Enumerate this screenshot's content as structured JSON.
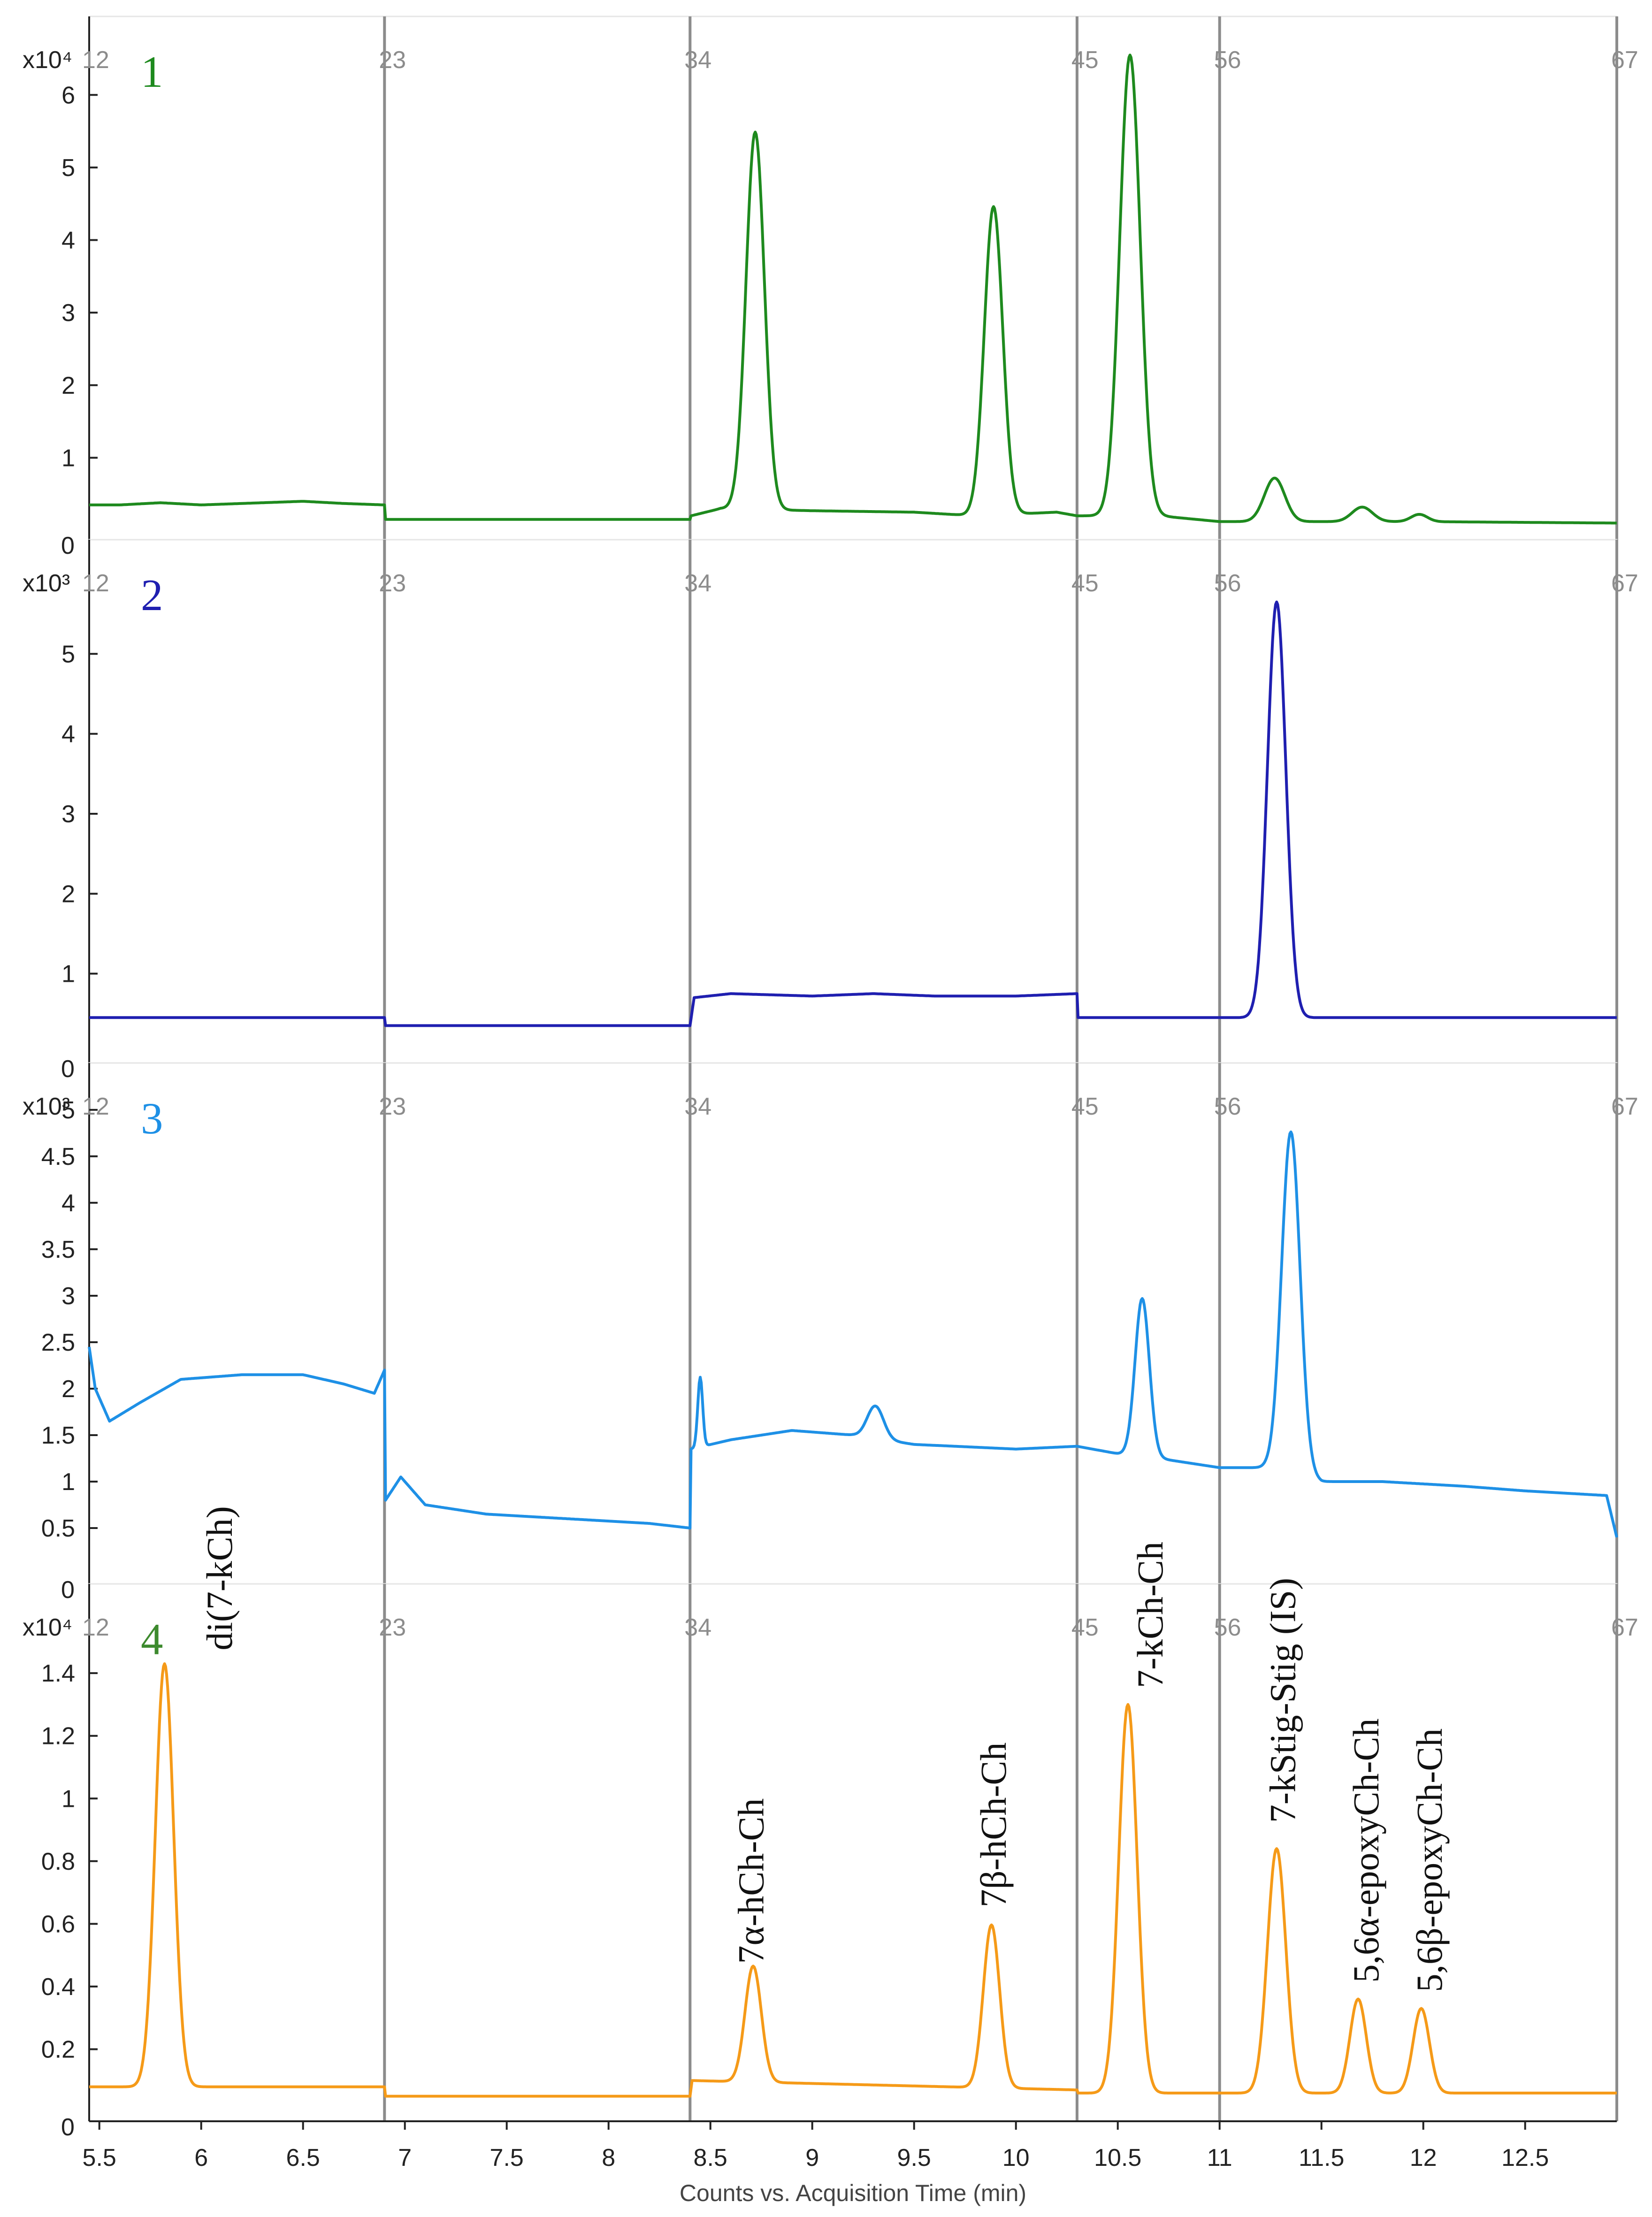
{
  "figure": {
    "type": "chromatogram-stack",
    "x_label": "Counts vs. Acquisition Time (min)",
    "x_ticks": [
      "5.5",
      "6",
      "6.5",
      "7",
      "7.5",
      "8",
      "8.5",
      "9",
      "9.5",
      "10",
      "10.5",
      "11",
      "11.5",
      "12",
      "12.5"
    ],
    "segment_labels": [
      {
        "t": 5.45,
        "text": "12"
      },
      {
        "t": 6.9,
        "text": "23"
      },
      {
        "t": 8.4,
        "text": "34"
      },
      {
        "t": 10.3,
        "text": "45"
      },
      {
        "t": 11.0,
        "text": "56"
      },
      {
        "t": 12.95,
        "text": "67"
      }
    ],
    "segment_boundaries": [
      6.9,
      8.4,
      10.3,
      11.0,
      12.95
    ]
  },
  "chart_data": [
    {
      "type": "line",
      "panel_number": "1",
      "number_color": "#1e8a1e",
      "color": "#1e8a1e",
      "exponent_label": "x10⁴",
      "y_ticks": [
        "1",
        "2",
        "3",
        "4",
        "5",
        "6"
      ],
      "y_zero": "0",
      "ylim": [
        0,
        6.5
      ],
      "xlim": [
        5.45,
        12.95
      ],
      "baseline": [
        [
          5.45,
          0.35
        ],
        [
          5.6,
          0.35
        ],
        [
          5.8,
          0.38
        ],
        [
          6.0,
          0.35
        ],
        [
          6.2,
          0.37
        ],
        [
          6.5,
          0.4
        ],
        [
          6.7,
          0.37
        ],
        [
          6.9,
          0.35
        ],
        [
          6.905,
          0.15
        ],
        [
          8.4,
          0.15
        ],
        [
          8.405,
          0.2
        ],
        [
          8.55,
          0.3
        ],
        [
          9.0,
          0.27
        ],
        [
          9.5,
          0.25
        ],
        [
          9.8,
          0.2
        ],
        [
          10.2,
          0.25
        ],
        [
          10.3,
          0.2
        ],
        [
          10.5,
          0.2
        ],
        [
          10.7,
          0.2
        ],
        [
          11.0,
          0.12
        ],
        [
          11.3,
          0.12
        ],
        [
          11.6,
          0.12
        ],
        [
          12.0,
          0.12
        ],
        [
          12.95,
          0.1
        ]
      ],
      "peaks": [
        {
          "center": 8.72,
          "height": 5.2,
          "sigma": 0.045
        },
        {
          "center": 9.89,
          "height": 4.25,
          "sigma": 0.045
        },
        {
          "center": 10.56,
          "height": 6.35,
          "sigma": 0.05
        },
        {
          "center": 11.27,
          "height": 0.6,
          "sigma": 0.05
        },
        {
          "center": 11.7,
          "height": 0.2,
          "sigma": 0.05
        },
        {
          "center": 11.98,
          "height": 0.1,
          "sigma": 0.04
        }
      ],
      "annotations": []
    },
    {
      "type": "line",
      "panel_number": "2",
      "number_color": "#1f1fb0",
      "color": "#1f1fb0",
      "exponent_label": "x10³",
      "y_ticks": [
        "1",
        "2",
        "3",
        "4",
        "5"
      ],
      "y_zero": "0",
      "ylim": [
        0,
        5.9
      ],
      "xlim": [
        5.45,
        12.95
      ],
      "baseline": [
        [
          5.45,
          0.45
        ],
        [
          6.9,
          0.45
        ],
        [
          6.905,
          0.35
        ],
        [
          8.4,
          0.35
        ],
        [
          8.42,
          0.7
        ],
        [
          8.6,
          0.75
        ],
        [
          9.0,
          0.72
        ],
        [
          9.3,
          0.75
        ],
        [
          9.6,
          0.72
        ],
        [
          10.0,
          0.72
        ],
        [
          10.3,
          0.75
        ],
        [
          10.305,
          0.45
        ],
        [
          11.0,
          0.45
        ],
        [
          12.95,
          0.45
        ]
      ],
      "peaks": [
        {
          "center": 11.28,
          "height": 5.2,
          "sigma": 0.045
        }
      ],
      "annotations": []
    },
    {
      "type": "line",
      "panel_number": "3",
      "number_color": "#1e90e6",
      "color": "#1e90e6",
      "exponent_label": "x10³",
      "y_ticks": [
        "0.5",
        "1",
        "1.5",
        "2",
        "2.5",
        "3",
        "3.5",
        "4",
        "4.5",
        "5"
      ],
      "y_zero": "0",
      "ylim": [
        0,
        5.05
      ],
      "xlim": [
        5.45,
        12.95
      ],
      "baseline": [
        [
          5.45,
          2.45
        ],
        [
          5.48,
          2.0
        ],
        [
          5.55,
          1.65
        ],
        [
          5.7,
          1.85
        ],
        [
          5.9,
          2.1
        ],
        [
          6.2,
          2.15
        ],
        [
          6.5,
          2.15
        ],
        [
          6.7,
          2.05
        ],
        [
          6.85,
          1.95
        ],
        [
          6.9,
          2.2
        ],
        [
          6.905,
          0.8
        ],
        [
          6.98,
          1.05
        ],
        [
          7.1,
          0.75
        ],
        [
          7.4,
          0.65
        ],
        [
          7.8,
          0.6
        ],
        [
          8.2,
          0.55
        ],
        [
          8.4,
          0.5
        ],
        [
          8.405,
          1.35
        ],
        [
          8.6,
          1.45
        ],
        [
          8.9,
          1.55
        ],
        [
          9.2,
          1.5
        ],
        [
          9.5,
          1.4
        ],
        [
          10.0,
          1.35
        ],
        [
          10.3,
          1.38
        ],
        [
          10.5,
          1.3
        ],
        [
          10.7,
          1.25
        ],
        [
          11.0,
          1.15
        ],
        [
          11.3,
          1.15
        ],
        [
          11.5,
          1.0
        ],
        [
          11.8,
          1.0
        ],
        [
          12.2,
          0.95
        ],
        [
          12.5,
          0.9
        ],
        [
          12.9,
          0.85
        ],
        [
          12.95,
          0.4
        ]
      ],
      "peaks": [
        {
          "center": 8.45,
          "height": 0.75,
          "sigma": 0.012
        },
        {
          "center": 9.31,
          "height": 0.35,
          "sigma": 0.04
        },
        {
          "center": 10.62,
          "height": 1.7,
          "sigma": 0.035
        },
        {
          "center": 11.35,
          "height": 3.65,
          "sigma": 0.045
        }
      ],
      "annotations": []
    },
    {
      "type": "line",
      "panel_number": "4",
      "number_color": "#3d8a2e",
      "color": "#f59a18",
      "exponent_label": "x10⁴",
      "y_ticks": [
        "0.2",
        "0.4",
        "0.6",
        "0.8",
        "1",
        "1.2",
        "1.4"
      ],
      "y_zero": "0",
      "ylim": [
        0,
        1.55
      ],
      "xlim": [
        5.45,
        12.95
      ],
      "baseline": [
        [
          5.45,
          0.08
        ],
        [
          6.9,
          0.08
        ],
        [
          6.905,
          0.05
        ],
        [
          8.4,
          0.05
        ],
        [
          8.41,
          0.1
        ],
        [
          10.3,
          0.07
        ],
        [
          10.305,
          0.06
        ],
        [
          11.0,
          0.06
        ],
        [
          12.95,
          0.06
        ]
      ],
      "peaks": [
        {
          "center": 5.82,
          "height": 1.35,
          "sigma": 0.045
        },
        {
          "center": 8.71,
          "height": 0.37,
          "sigma": 0.04
        },
        {
          "center": 9.88,
          "height": 0.52,
          "sigma": 0.04
        },
        {
          "center": 10.55,
          "height": 1.24,
          "sigma": 0.045
        },
        {
          "center": 11.28,
          "height": 0.78,
          "sigma": 0.045
        },
        {
          "center": 11.68,
          "height": 0.3,
          "sigma": 0.04
        },
        {
          "center": 11.99,
          "height": 0.27,
          "sigma": 0.04
        }
      ],
      "annotations": [
        {
          "t": 6.15,
          "y": 1.42,
          "text": "di(7-kCh)"
        },
        {
          "t": 8.76,
          "y": 0.42,
          "text": "7α-hCh-Ch"
        },
        {
          "t": 9.95,
          "y": 0.6,
          "text": "7β-hCh-Ch"
        },
        {
          "t": 10.72,
          "y": 1.3,
          "text": "7-kCh-Ch"
        },
        {
          "t": 11.37,
          "y": 0.87,
          "text": "7-kStig-Stig (IS)"
        },
        {
          "t": 11.78,
          "y": 0.36,
          "text": "5,6α-epoxyCh-Ch"
        },
        {
          "t": 12.09,
          "y": 0.33,
          "text": "5,6β-epoxyCh-Ch"
        }
      ]
    }
  ]
}
